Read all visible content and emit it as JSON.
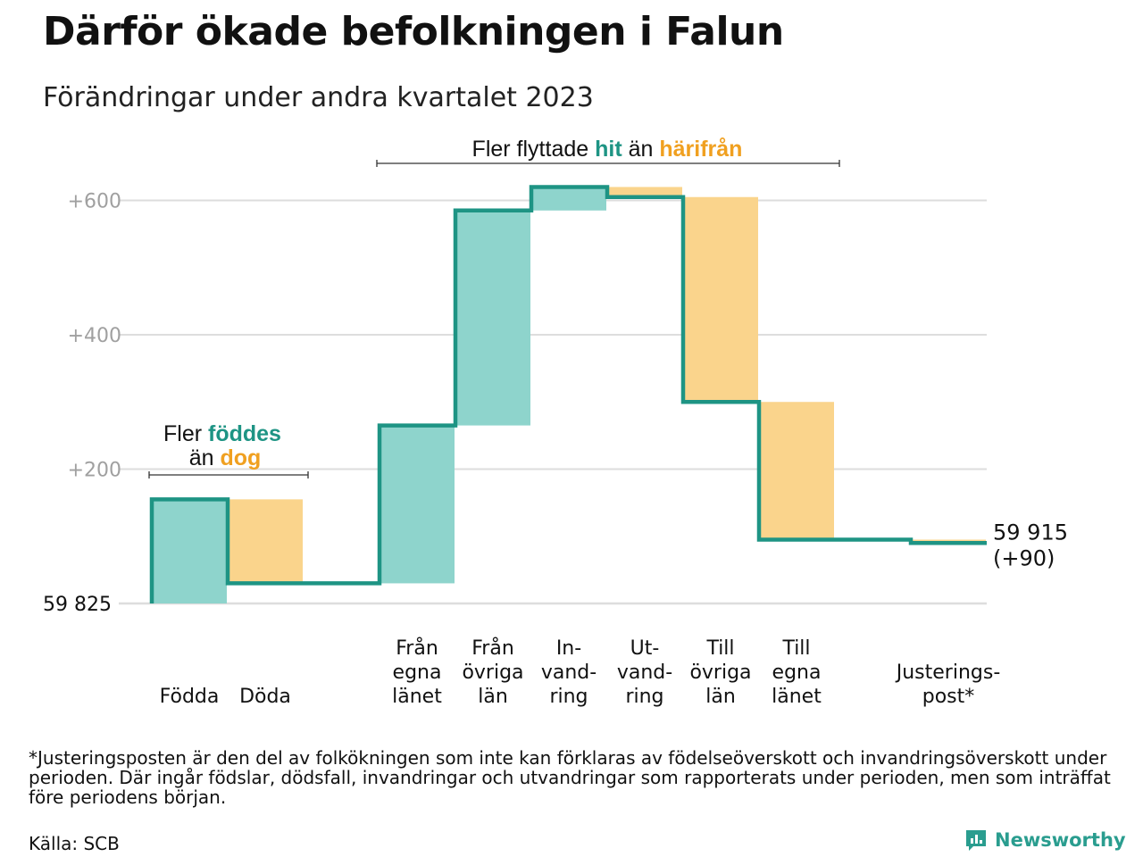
{
  "title": "Därför ökade befolkningen i Falun",
  "subtitle": "Förändringar under andra kvartalet 2023",
  "colors": {
    "increase": "#8ed4cc",
    "decrease": "#fad48c",
    "line": "#1e9484",
    "hit": "#1e9484",
    "harifran": "#f0a020",
    "grid": "#dddddd",
    "axis_text": "#a0a0a0"
  },
  "chart_data": {
    "type": "waterfall",
    "start_value": 59825,
    "start_label": "59  825",
    "end_value": 59915,
    "end_label": "59 915",
    "end_change_label": "(+90)",
    "y_ticks": [
      {
        "value": 200,
        "label": "+200"
      },
      {
        "value": 400,
        "label": "+400"
      },
      {
        "value": 600,
        "label": "+600"
      }
    ],
    "ylim": [
      0,
      640
    ],
    "steps": [
      {
        "label": [
          "Födda"
        ],
        "value": 155
      },
      {
        "label": [
          "Döda"
        ],
        "value": -125
      },
      {
        "label": [
          "Från",
          "egna",
          "länet"
        ],
        "value": 235
      },
      {
        "label": [
          "Från",
          "övriga",
          "län"
        ],
        "value": 320
      },
      {
        "label": [
          "In-",
          "vand-",
          "ring"
        ],
        "value": 35
      },
      {
        "label": [
          "Ut-",
          "vand-",
          "ring"
        ],
        "value": -15
      },
      {
        "label": [
          "Till",
          "övriga",
          "län"
        ],
        "value": -305
      },
      {
        "label": [
          "Till",
          "egna",
          "länet"
        ],
        "value": -205
      },
      {
        "label": [
          "Justerings-",
          "post*"
        ],
        "value": -5
      }
    ],
    "annotations": [
      {
        "parts": [
          "Fler",
          "föddes",
          "än",
          "dog"
        ]
      },
      {
        "parts": [
          "Fler flyttade",
          "hit",
          "än",
          "härifrån"
        ]
      }
    ]
  },
  "footnote": "*Justeringsposten är den del av folkökningen som inte kan förklaras av födelseöverskott och invandringsöverskott under perioden. Där ingår födslar, dödsfall, invandringar och utvandringar som rapporterats under perioden, men som inträffat före periodens början.",
  "source": "Källa: SCB",
  "brand": {
    "name": "Newsworthy",
    "icon": "newsworthy-logo-icon"
  }
}
